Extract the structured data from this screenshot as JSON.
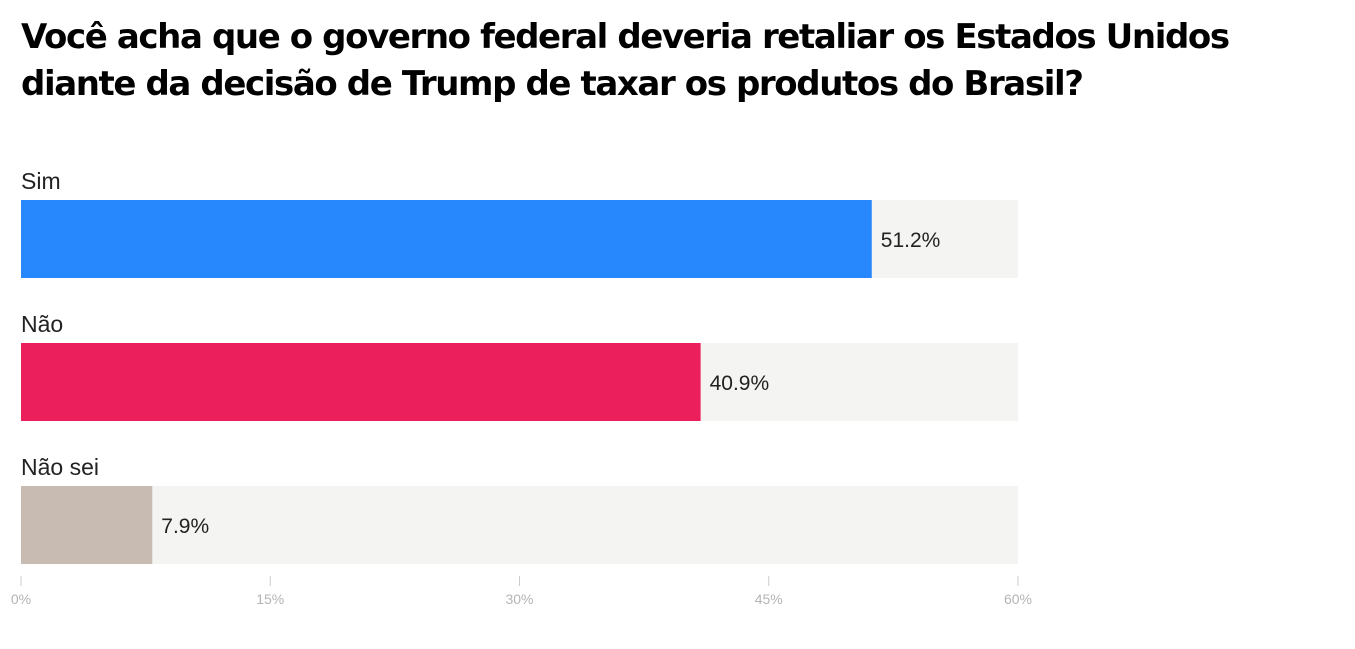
{
  "chart_data": {
    "type": "bar",
    "orientation": "horizontal",
    "title": "Você acha que o governo federal deveria retaliar os Estados Unidos diante da decisão de Trump de taxar os produtos do Brasil?",
    "categories": [
      "Sim",
      "Não",
      "Não sei"
    ],
    "values": [
      51.2,
      40.9,
      7.9
    ],
    "value_labels": [
      "51.2%",
      "40.9%",
      "7.9%"
    ],
    "colors": [
      "#2788fd",
      "#ec1f5d",
      "#c8bbb2"
    ],
    "track_color": "#f4f4f2",
    "xlim": [
      0,
      60
    ],
    "ticks": [
      0,
      15,
      30,
      45,
      60
    ],
    "tick_labels": [
      "0%",
      "15%",
      "30%",
      "45%",
      "60%"
    ],
    "xlabel": "",
    "ylabel": "",
    "grid": false,
    "legend": "none"
  }
}
